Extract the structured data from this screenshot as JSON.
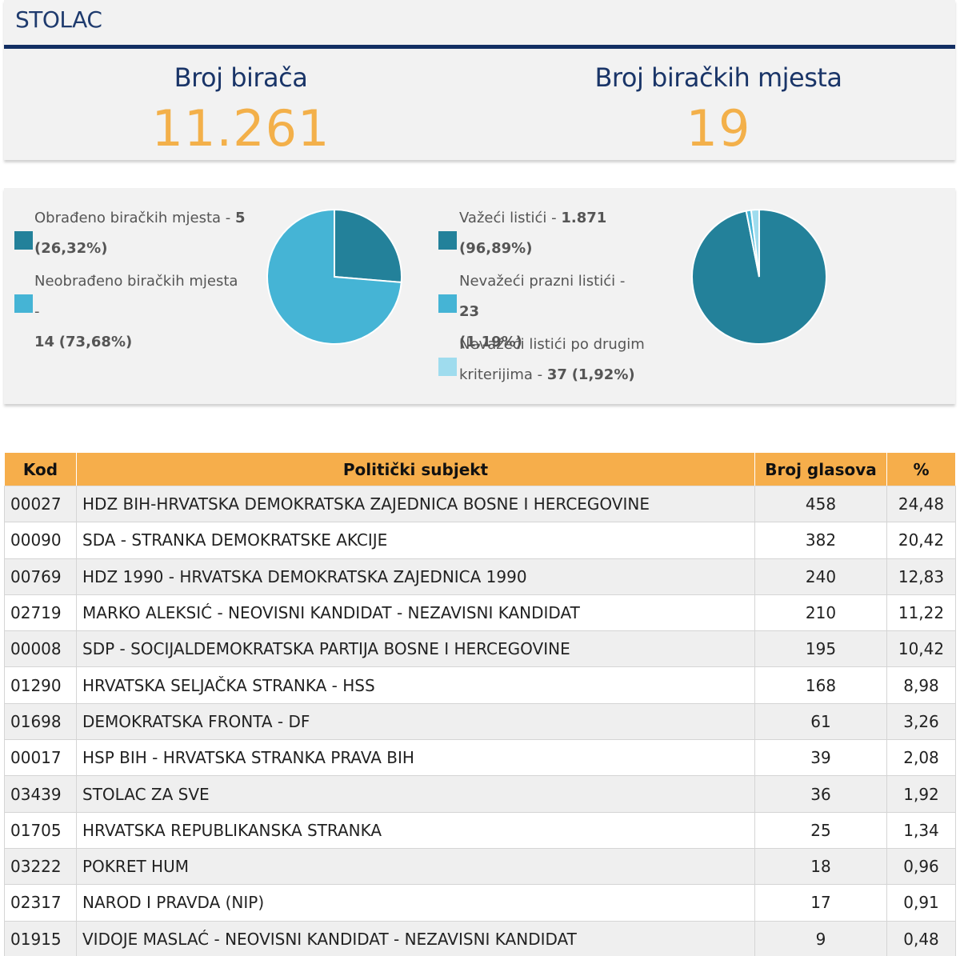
{
  "municipality": "STOLAC",
  "stats": {
    "voters_label": "Broj birača",
    "voters_value": "11.261",
    "stations_label": "Broj biračkih mjesta",
    "stations_value": "19"
  },
  "colors": {
    "dark_teal": "#23819a",
    "light_blue": "#45b4d5",
    "pale_blue": "#9fdcee",
    "orange": "#f6ae4b",
    "navy": "#132f63"
  },
  "chart_data": [
    {
      "type": "pie",
      "title": "",
      "series": [
        {
          "label": "Obrađeno biračkih mjesta",
          "value": 5,
          "display_value": "5",
          "percent_text": "(26,32%)",
          "color": "#23819a"
        },
        {
          "label": "Neobrađeno biračkih mjesta",
          "value": 14,
          "display_value": "14",
          "percent_text": "(73,68%)",
          "color": "#45b4d5"
        }
      ]
    },
    {
      "type": "pie",
      "title": "",
      "series": [
        {
          "label": "Važeći listići",
          "value": 1871,
          "display_value": "1.871",
          "percent_text": "(96,89%)",
          "color": "#23819a"
        },
        {
          "label": "Nevažeći prazni listići",
          "value": 23,
          "display_value": "23",
          "percent_text": "(1,19%)",
          "color": "#45b4d5"
        },
        {
          "label": "Nevažeći listići po drugim kriterijima",
          "value": 37,
          "display_value": "37",
          "percent_text": "(1,92%)",
          "color": "#9fdcee"
        }
      ]
    }
  ],
  "table": {
    "headers": [
      "Kod",
      "Politički subjekt",
      "Broj glasova",
      "%"
    ],
    "rows": [
      [
        "00027",
        "HDZ BIH-HRVATSKA DEMOKRATSKA ZAJEDNICA BOSNE I HERCEGOVINE",
        "458",
        "24,48"
      ],
      [
        "00090",
        "SDA - STRANKA DEMOKRATSKE AKCIJE",
        "382",
        "20,42"
      ],
      [
        "00769",
        "HDZ 1990 - HRVATSKA DEMOKRATSKA ZAJEDNICA 1990",
        "240",
        "12,83"
      ],
      [
        "02719",
        "MARKO ALEKSIĆ - NEOVISNI KANDIDAT - NEZAVISNI KANDIDAT",
        "210",
        "11,22"
      ],
      [
        "00008",
        "SDP - SOCIJALDEMOKRATSKA PARTIJA BOSNE I HERCEGOVINE",
        "195",
        "10,42"
      ],
      [
        "01290",
        "HRVATSKA SELJAČKA STRANKA - HSS",
        "168",
        "8,98"
      ],
      [
        "01698",
        "DEMOKRATSKA FRONTA - DF",
        "61",
        "3,26"
      ],
      [
        "00017",
        "HSP BIH - HRVATSKA STRANKA PRAVA BIH",
        "39",
        "2,08"
      ],
      [
        "03439",
        "STOLAC ZA SVE",
        "36",
        "1,92"
      ],
      [
        "01705",
        "HRVATSKA REPUBLIKANSKA STRANKA",
        "25",
        "1,34"
      ],
      [
        "03222",
        "POKRET HUM",
        "18",
        "0,96"
      ],
      [
        "02317",
        "NAROD I PRAVDA (NIP)",
        "17",
        "0,91"
      ],
      [
        "01915",
        "VIDOJE MASLAĆ - NEOVISNI KANDIDAT - NEZAVISNI KANDIDAT",
        "9",
        "0,48"
      ]
    ]
  }
}
